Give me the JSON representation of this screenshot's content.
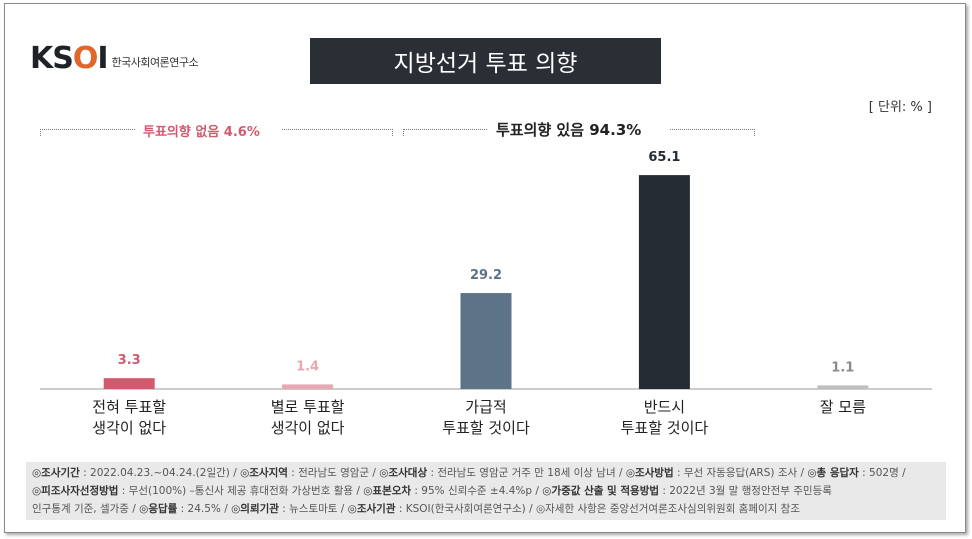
{
  "brand": {
    "mark_k": "K",
    "mark_s": "S",
    "mark_o": "O",
    "mark_i": "I",
    "text": "한국사회여론연구소"
  },
  "title": "지방선거 투표 의향",
  "unit": "[ 단위: % ]",
  "groups": {
    "no_intent": "투표의향 없음 4.6%",
    "intent": "투표의향 있음 94.3%"
  },
  "chart_data": {
    "type": "bar",
    "categories": [
      "전혀 투표할\n생각이 없다",
      "별로 투표할\n생각이 없다",
      "가급적\n투표할 것이다",
      "반드시\n투표할 것이다",
      "잘 모름"
    ],
    "values": [
      3.3,
      1.4,
      29.2,
      65.1,
      1.1
    ],
    "colors": [
      "#d25a6e",
      "#e6a8b3",
      "#5d7387",
      "#262c33",
      "#bfbfbf"
    ],
    "label_colors": [
      "#d25a6e",
      "#e6a8b3",
      "#5d7387",
      "#262c33",
      "#8a8a8a"
    ],
    "ylim": [
      0,
      70
    ]
  },
  "footer": {
    "line1": [
      {
        "k": "◎조사기간",
        "v": " : 2022.04.23.~04.24.(2일간) / "
      },
      {
        "k": "◎조사지역",
        "v": " : 전라남도 영암군 / "
      },
      {
        "k": "◎조사대상",
        "v": " : 전라남도 영암군 거주 만 18세 이상 남녀 / "
      },
      {
        "k": "◎조사방법",
        "v": " : 무선 자동응답(ARS) 조사 / "
      },
      {
        "k": "◎총 응답자",
        "v": " : 502명 /"
      }
    ],
    "line2": [
      {
        "k": "◎피조사자선정방법",
        "v": " : 무선(100%) –통신사 제공 휴대전화 가상번호 활용 / "
      },
      {
        "k": "◎표본오차",
        "v": " : 95% 신뢰수준 ±4.4%p / "
      },
      {
        "k": "◎가중값 산출 및 적용방법",
        "v": " : 2022년 3월 말 행정안전부 주민등록"
      }
    ],
    "line3": [
      {
        "k": "",
        "v": "인구통계 기준, 셀가중 / "
      },
      {
        "k": "◎응답률",
        "v": " : 24.5% / "
      },
      {
        "k": "◎의뢰기관",
        "v": " : 뉴스토마토 / "
      },
      {
        "k": "◎조사기관",
        "v": " : KSOI(한국사회여론연구소) / "
      },
      {
        "k": "",
        "v": "◎자세한 사항은 중앙선거여론조사심의위원회 홈페이지 참조"
      }
    ]
  }
}
